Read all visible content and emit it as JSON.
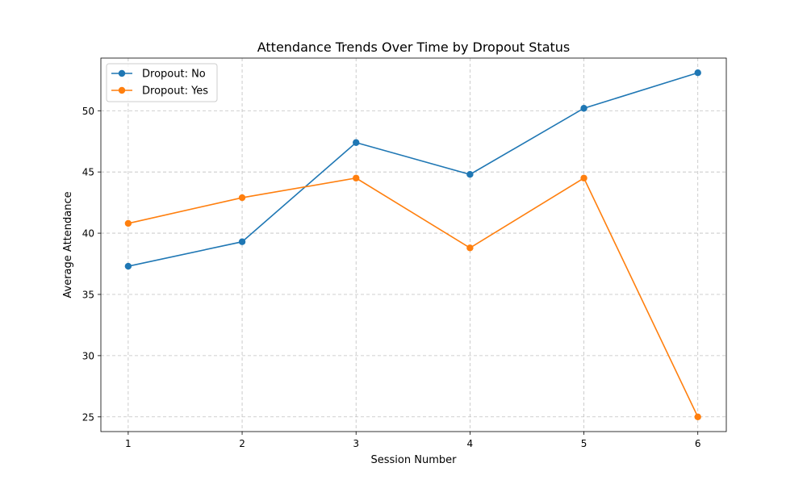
{
  "chart_data": {
    "type": "line",
    "title": "Attendance Trends Over Time by Dropout Status",
    "xlabel": "Session Number",
    "ylabel": "Average Attendance",
    "x": [
      1,
      2,
      3,
      4,
      5,
      6
    ],
    "xticks": [
      "1",
      "2",
      "3",
      "4",
      "5",
      "6"
    ],
    "xlim": [
      0.76,
      6.25
    ],
    "ylim": [
      23.8,
      54.3
    ],
    "yticks": [
      25,
      30,
      35,
      40,
      45,
      50
    ],
    "grid": true,
    "legend_position": "top-left",
    "series": [
      {
        "name": "Dropout: No",
        "color": "#1f77b4",
        "values": [
          37.3,
          39.3,
          47.4,
          44.8,
          50.2,
          53.1
        ]
      },
      {
        "name": "Dropout: Yes",
        "color": "#ff7f0e",
        "values": [
          40.8,
          42.9,
          44.5,
          38.8,
          44.5,
          25.0
        ]
      }
    ]
  }
}
